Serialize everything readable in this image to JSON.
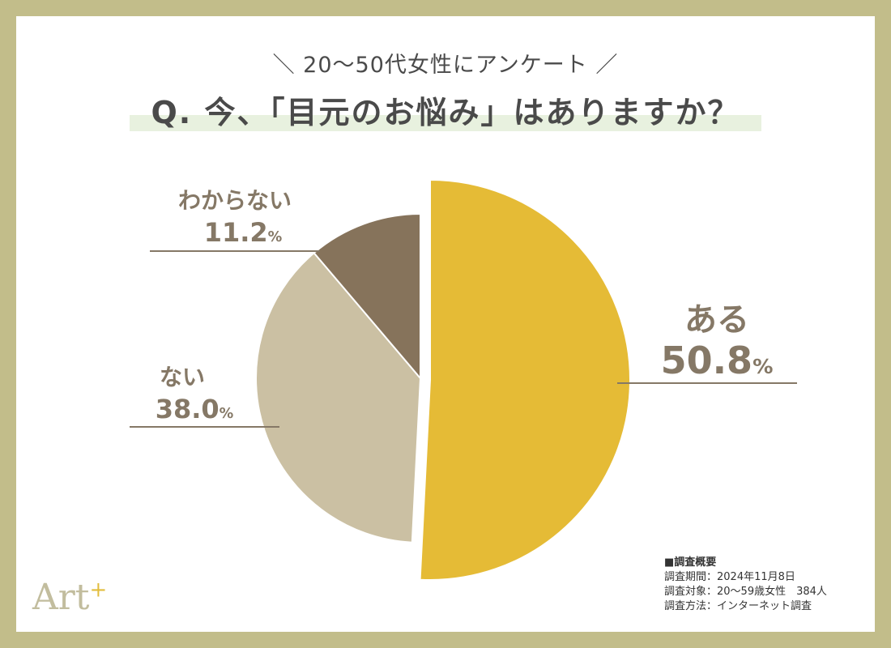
{
  "header": {
    "subtitle": "＼ 20〜50代女性にアンケート ／",
    "question": "Q. 今、「目元のお悩み」はありますか？"
  },
  "chart_data": {
    "type": "pie",
    "categories": [
      "ある",
      "ない",
      "わからない"
    ],
    "values": [
      50.8,
      38.0,
      11.2
    ],
    "value_labels": [
      "50.8",
      "38.0",
      "11.2"
    ],
    "unit": "%",
    "colors": [
      "#e5bb36",
      "#cbc0a3",
      "#86735b"
    ],
    "start": "top",
    "direction": "clockwise",
    "exploded": [
      "ある"
    ]
  },
  "survey": {
    "heading": "■調査概要",
    "lines": [
      "調査期間：2024年11月8日",
      "調査対象：20〜59歳女性　384人",
      "調査方法：インターネット調査"
    ]
  },
  "logo": {
    "text": "Art",
    "mark": "+"
  }
}
